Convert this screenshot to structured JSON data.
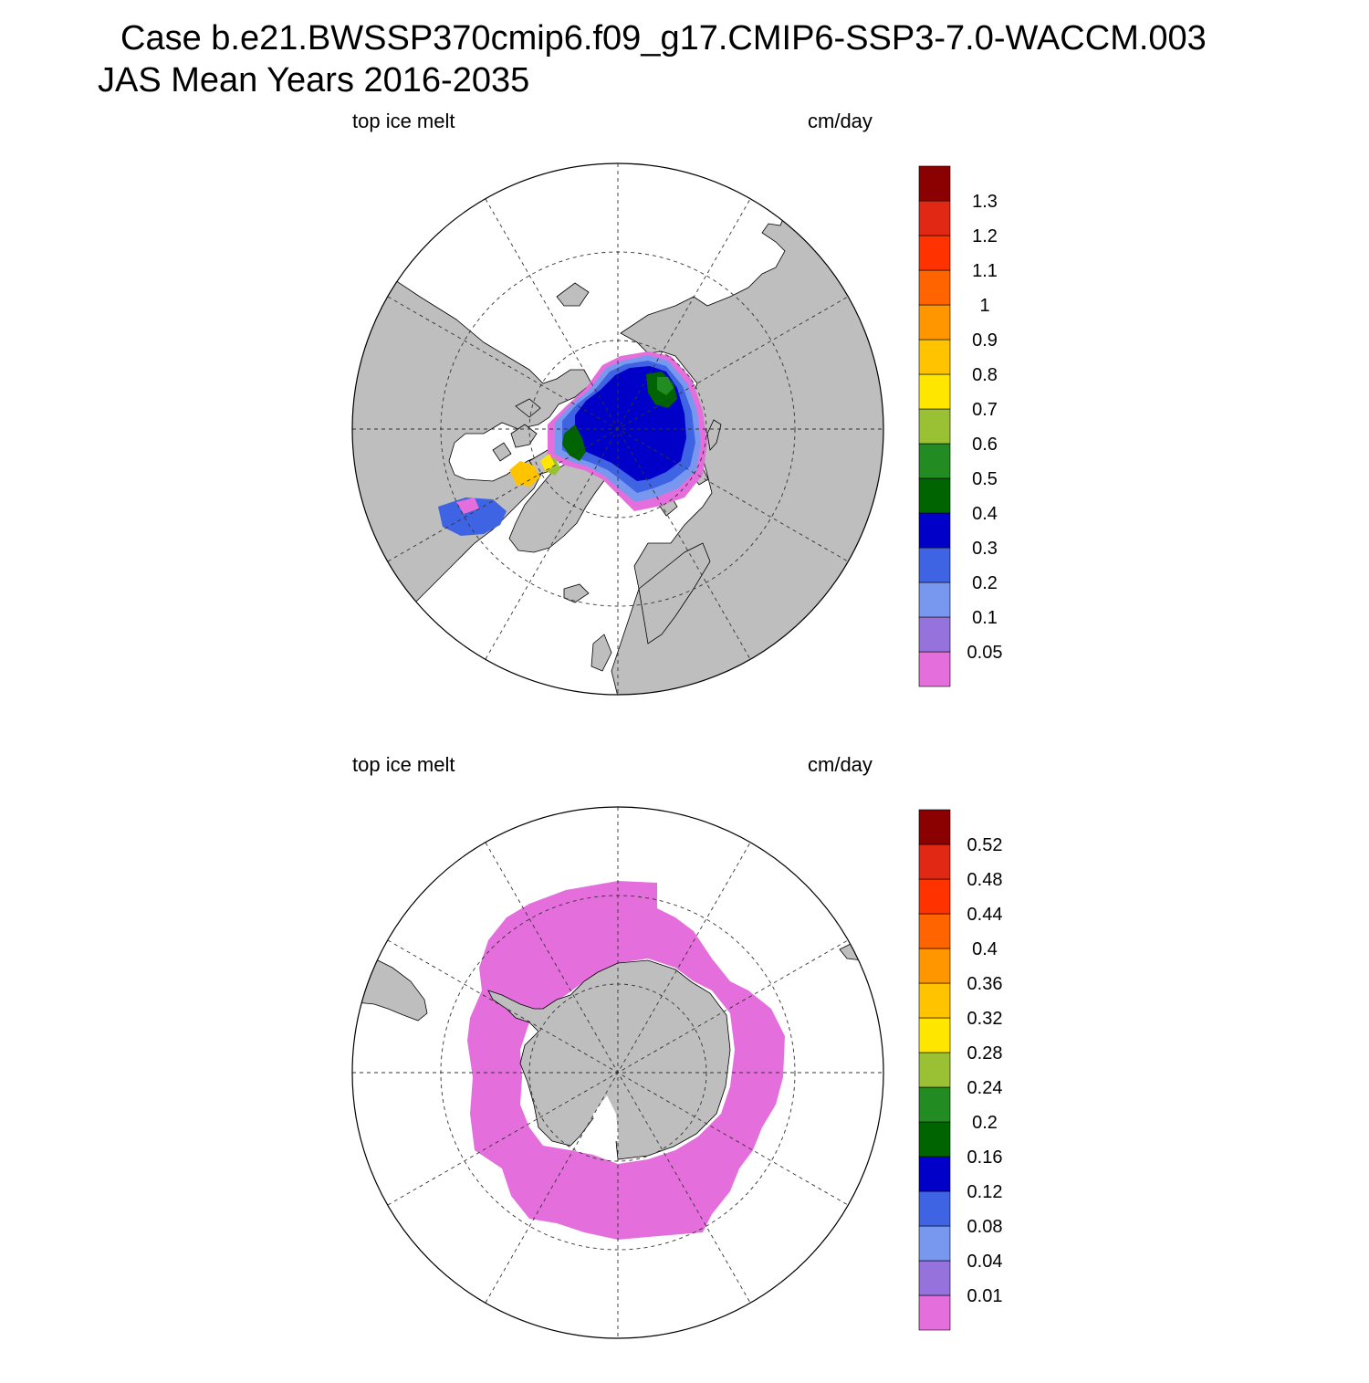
{
  "header": {
    "title_line1": "Case b.e21.BWSSP370cmip6.f09_g17.CMIP6-SSP3-7.0-WACCM.003",
    "title_line2": "JAS Mean   Years 2016-2035"
  },
  "colors": {
    "land": "#bebebe",
    "ocean": "#ffffff",
    "scale": [
      "#e46fdc",
      "#9673dc",
      "#7898f0",
      "#3e64e4",
      "#0000c8",
      "#006400",
      "#228b22",
      "#9ac033",
      "#ffe600",
      "#ffc300",
      "#ff9600",
      "#ff6400",
      "#ff3200",
      "#e02814",
      "#8b0000"
    ]
  },
  "panels": [
    {
      "id": "north",
      "variable": "top ice melt",
      "units": "cm/day",
      "hemisphere": "Arctic",
      "colorbar_labels": [
        "0.05",
        "0.1",
        "0.2",
        "0.3",
        "0.4",
        "0.5",
        "0.6",
        "0.7",
        "0.8",
        "0.9",
        "1",
        "1.1",
        "1.2",
        "1.3"
      ]
    },
    {
      "id": "south",
      "variable": "top ice melt",
      "units": "cm/day",
      "hemisphere": "Antarctic",
      "colorbar_labels": [
        "0.01",
        "0.04",
        "0.08",
        "0.12",
        "0.16",
        "0.2",
        "0.24",
        "0.28",
        "0.32",
        "0.36",
        "0.4",
        "0.44",
        "0.48",
        "0.52"
      ]
    }
  ]
}
